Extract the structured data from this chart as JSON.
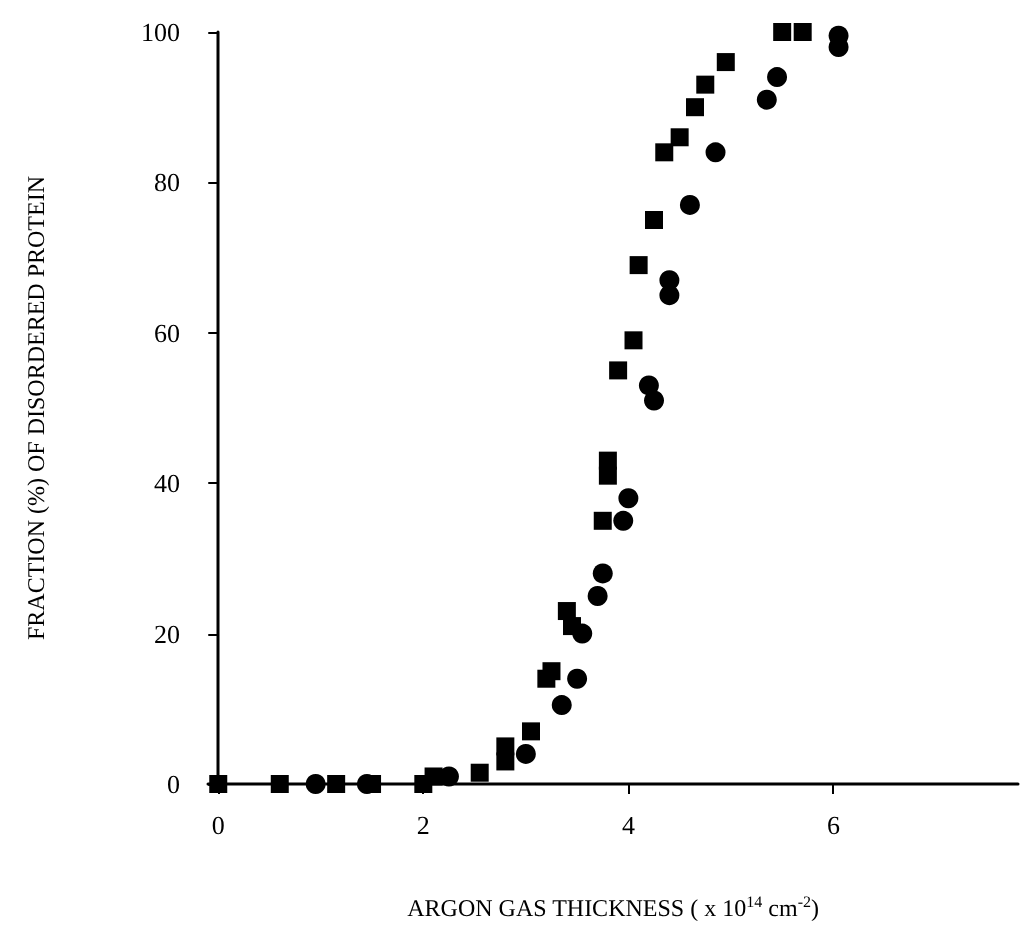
{
  "chart_data": {
    "type": "scatter",
    "xlabel": "ARGON GAS THICKNESS ( x 10$^{14}$ cm$^{-2}$)",
    "ylabel": "FRACTION (%) OF DISORDERED PROTEIN",
    "xlim": [
      -0.1,
      7.8
    ],
    "xticks": [
      0,
      2,
      4,
      6
    ],
    "ylim": [
      0,
      100
    ],
    "yticks": [
      0,
      20,
      40,
      60,
      80,
      100
    ],
    "series": [
      {
        "marker": "square",
        "color": "#000000",
        "x": [
          0,
          0.6,
          1.15,
          1.5,
          2.0,
          2.1,
          2.55,
          2.8,
          2.8,
          3.05,
          3.2,
          3.25,
          3.4,
          3.45,
          3.75,
          3.8,
          3.8,
          3.9,
          4.05,
          4.1,
          4.25,
          4.35,
          4.5,
          4.65,
          4.75,
          4.95,
          5.5,
          5.7
        ],
        "values": [
          0,
          0,
          0,
          0,
          0,
          1,
          1.5,
          3,
          5,
          7,
          14,
          15,
          23,
          21,
          35,
          41,
          43,
          55,
          59,
          69,
          75,
          84,
          86,
          90,
          93,
          96,
          100,
          100
        ]
      },
      {
        "marker": "circle",
        "color": "#000000",
        "x": [
          0.95,
          1.45,
          2.25,
          3.0,
          3.35,
          3.5,
          3.55,
          3.7,
          3.75,
          3.95,
          4.0,
          4.2,
          4.25,
          4.4,
          4.4,
          4.6,
          4.85,
          5.35,
          5.45,
          6.05,
          6.05
        ],
        "values": [
          0,
          0,
          1,
          4,
          10.5,
          14,
          20,
          25,
          28,
          35,
          38,
          53,
          51,
          65,
          67,
          77,
          84,
          91,
          94,
          98,
          99.5
        ]
      }
    ]
  }
}
